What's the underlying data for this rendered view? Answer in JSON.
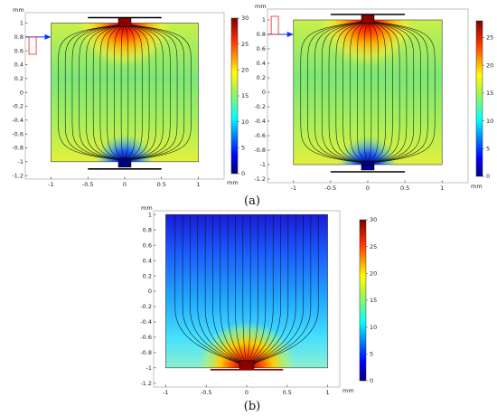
{
  "chart_data": [
    {
      "type": "heatmap",
      "id": "a-left",
      "xlim": [
        -1.35,
        1.35
      ],
      "ylim": [
        -1.25,
        1.15
      ],
      "unit": "mm",
      "x_ticks": [
        -1,
        -0.5,
        0,
        0.5,
        1
      ],
      "x_tick_labels": [
        "-1",
        "-0.5",
        "0",
        "0.5",
        "1"
      ],
      "y_ticks": [
        1,
        0.8,
        0.6,
        0.4,
        0.2,
        0,
        -0.2,
        -0.4,
        -0.6,
        -0.8,
        -1,
        -1.2
      ],
      "y_tick_labels": [
        "1",
        "0.8",
        "0.6",
        "0.4",
        "0.2",
        "0",
        "-0.2",
        "-0.4",
        "-0.6",
        "-0.8",
        "-1",
        "-1.2"
      ],
      "colorbar": {
        "min": 0,
        "max": 30,
        "ticks": [
          0,
          5,
          10,
          15,
          20,
          25,
          30
        ],
        "labels": [
          "0",
          "5",
          "10",
          "15",
          "20",
          "25",
          "30"
        ]
      },
      "colors": {
        "high": "#8b0000",
        "low": "#00007f"
      },
      "hot_electrode": "top",
      "field_lines": 20,
      "indicator": {
        "arrow": true,
        "pulse_level": 0.7
      }
    },
    {
      "type": "heatmap",
      "id": "a-right",
      "xlim": [
        -1.35,
        1.35
      ],
      "ylim": [
        -1.25,
        1.15
      ],
      "unit": "mm",
      "x_ticks": [
        -1,
        -0.5,
        0,
        0.5,
        1
      ],
      "x_tick_labels": [
        "-1",
        "-0.5",
        "0",
        "0.5",
        "1"
      ],
      "y_ticks": [
        1,
        0.8,
        0.6,
        0.4,
        0.2,
        0,
        -0.2,
        -0.4,
        -0.6,
        -0.8,
        -1,
        -1.2
      ],
      "y_tick_labels": [
        "1",
        "0.8",
        "0.6",
        "0.4",
        "0.2",
        "0",
        "-0.2",
        "-0.4",
        "-0.6",
        "-0.8",
        "-1",
        "-1.2"
      ],
      "colorbar": {
        "min": 0,
        "max": 28,
        "ticks": [
          0,
          5,
          10,
          15,
          20,
          25
        ],
        "labels": [
          "0",
          "5",
          "10",
          "15",
          "20",
          "25"
        ]
      },
      "colors": {
        "high": "#8b0000",
        "low": "#00007f"
      },
      "hot_electrode": "top",
      "field_lines": 20,
      "indicator": {
        "arrow": true,
        "pulse_level": 0.7
      }
    },
    {
      "type": "heatmap",
      "id": "b",
      "xlim": [
        -1.15,
        1.15
      ],
      "ylim": [
        -1.25,
        1.05
      ],
      "unit": "mm",
      "x_ticks": [
        -1,
        -0.5,
        0,
        0.5,
        1
      ],
      "x_tick_labels": [
        "-1",
        "-0.5",
        "0",
        "0.5",
        "1"
      ],
      "y_ticks": [
        1,
        0.8,
        0.6,
        0.4,
        0.2,
        0,
        -0.2,
        -0.4,
        -0.6,
        -0.8,
        -1,
        -1.2
      ],
      "y_tick_labels": [
        "1",
        "0.8",
        "0.6",
        "0.4",
        "0.2",
        "0",
        "-0.2",
        "-0.4",
        "-0.6",
        "-0.8",
        "-1",
        "-1.2"
      ],
      "colorbar": {
        "min": 0,
        "max": 30,
        "ticks": [
          0,
          5,
          10,
          15,
          20,
          25,
          30
        ],
        "labels": [
          "0",
          "5",
          "10",
          "15",
          "20",
          "25",
          "30"
        ]
      },
      "colors": {
        "high": "#8b0000",
        "low": "#00007f"
      },
      "hot_electrode": "bottom",
      "field_lines": 20
    }
  ],
  "captions": {
    "a": "(a)",
    "b": "(b)"
  }
}
